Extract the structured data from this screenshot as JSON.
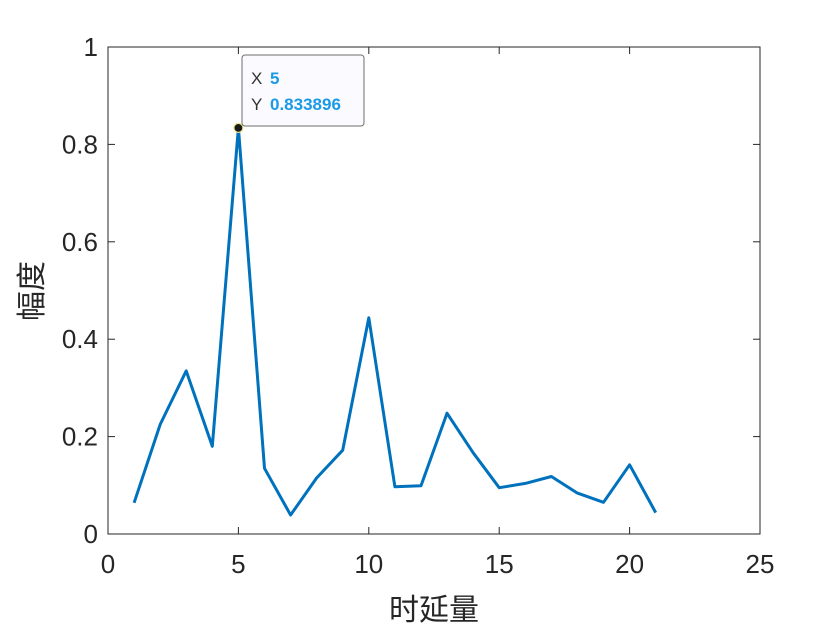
{
  "chart_data": {
    "type": "line",
    "xlabel": "时延量",
    "ylabel": "幅度",
    "xlim": [
      0,
      25
    ],
    "ylim": [
      0,
      1
    ],
    "xticks": [
      0,
      5,
      10,
      15,
      20,
      25
    ],
    "yticks": [
      0,
      0.2,
      0.4,
      0.6,
      0.8,
      1
    ],
    "xtick_labels": [
      "0",
      "5",
      "10",
      "15",
      "20",
      "25"
    ],
    "ytick_labels": [
      "0",
      "0.2",
      "0.4",
      "0.6",
      "0.8",
      "1"
    ],
    "grid": false,
    "series": [
      {
        "color": "#0072bd",
        "x": [
          1,
          2,
          3,
          4,
          5,
          6,
          7,
          8,
          9,
          10,
          11,
          12,
          13,
          14,
          15,
          16,
          17,
          18,
          19,
          20,
          21
        ],
        "y": [
          0.064,
          0.225,
          0.335,
          0.18,
          0.834,
          0.135,
          0.039,
          0.115,
          0.172,
          0.444,
          0.097,
          0.099,
          0.248,
          0.167,
          0.095,
          0.104,
          0.118,
          0.084,
          0.065,
          0.142,
          0.044
        ]
      }
    ],
    "datatip": {
      "x_label": "X",
      "x_value": "5",
      "y_label": "Y",
      "y_value": "0.833896",
      "x": 5,
      "y": 0.833896
    }
  }
}
